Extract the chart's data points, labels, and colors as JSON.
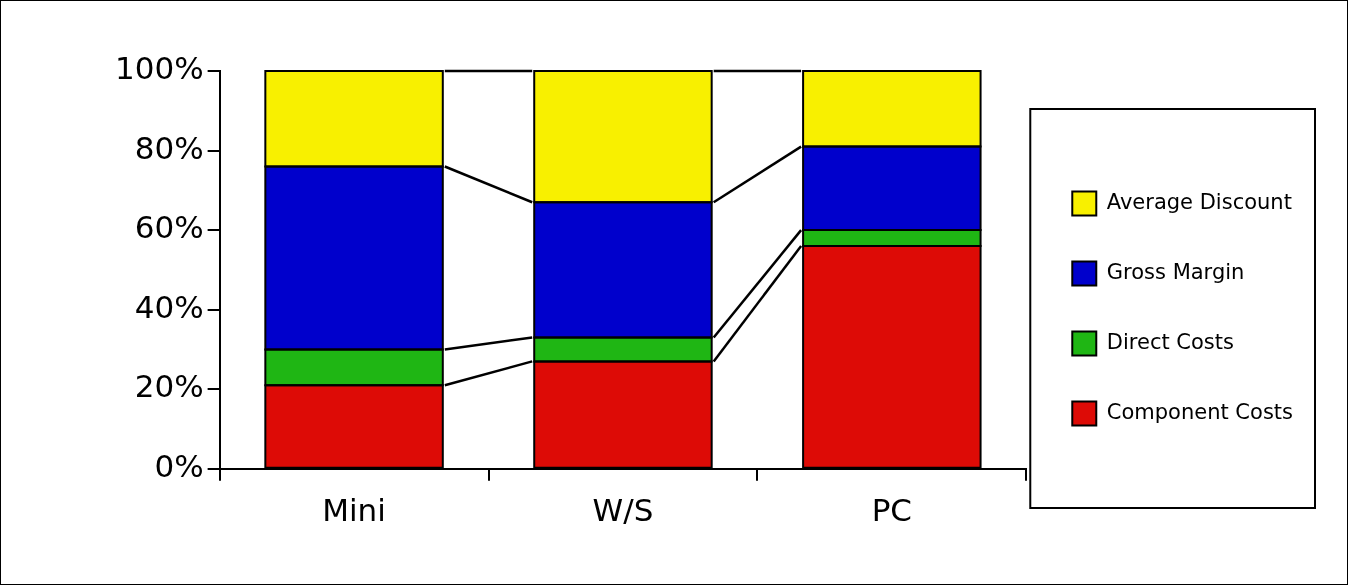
{
  "chart_data": {
    "type": "bar",
    "stacked": true,
    "categories": [
      "Mini",
      "W/S",
      "PC"
    ],
    "series": [
      {
        "name": "Component Costs",
        "color": "#dd0b06",
        "values": [
          21,
          27,
          56
        ]
      },
      {
        "name": "Direct Costs",
        "color": "#1fb614",
        "values": [
          9,
          6,
          4
        ]
      },
      {
        "name": "Gross Margin",
        "color": "#0000cc",
        "values": [
          46,
          34,
          21
        ]
      },
      {
        "name": "Average Discount",
        "color": "#f8f000",
        "values": [
          24,
          33,
          19
        ]
      }
    ],
    "ylim": [
      0,
      100
    ],
    "yticks": [
      {
        "value": 0,
        "label": "0%"
      },
      {
        "value": 20,
        "label": "20%"
      },
      {
        "value": 40,
        "label": "40%"
      },
      {
        "value": 60,
        "label": "60%"
      },
      {
        "value": 80,
        "label": "80%"
      },
      {
        "value": 100,
        "label": "100%"
      }
    ],
    "grid": false,
    "legend": "right"
  }
}
